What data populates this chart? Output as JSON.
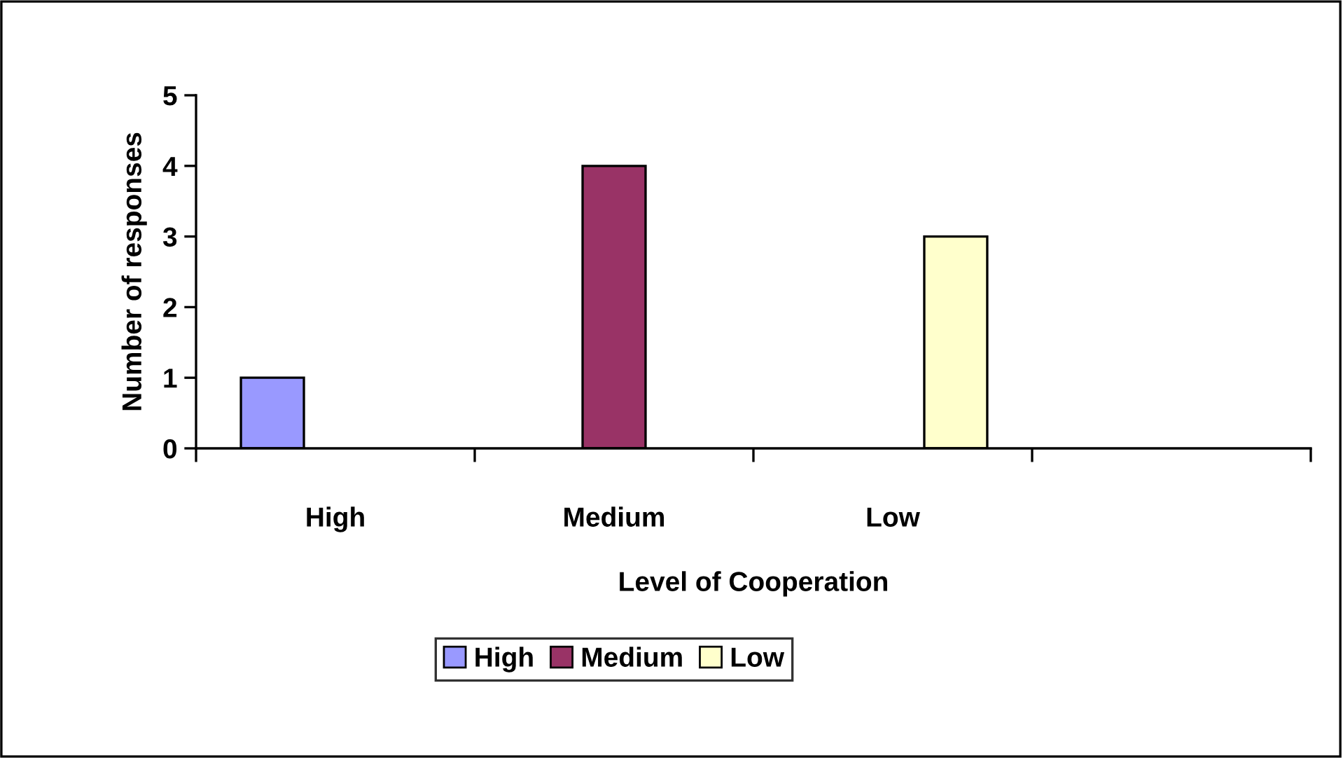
{
  "chart_data": {
    "type": "bar",
    "xlabel": "Level of Cooperation",
    "ylabel": "Number of responses",
    "categories": [
      "High",
      "Medium",
      "Low",
      null
    ],
    "series": [
      {
        "name": "High",
        "color": "#9999ff",
        "values": [
          1,
          null,
          null,
          null
        ]
      },
      {
        "name": "Medium",
        "color": "#993366",
        "values": [
          null,
          4,
          null,
          null
        ]
      },
      {
        "name": "Low",
        "color": "#ffffcc",
        "values": [
          null,
          null,
          3,
          null
        ]
      }
    ],
    "ylim": [
      0,
      5
    ],
    "yticks": [
      0,
      1,
      2,
      3,
      4,
      5
    ],
    "grid": false,
    "legend": "bottom"
  }
}
